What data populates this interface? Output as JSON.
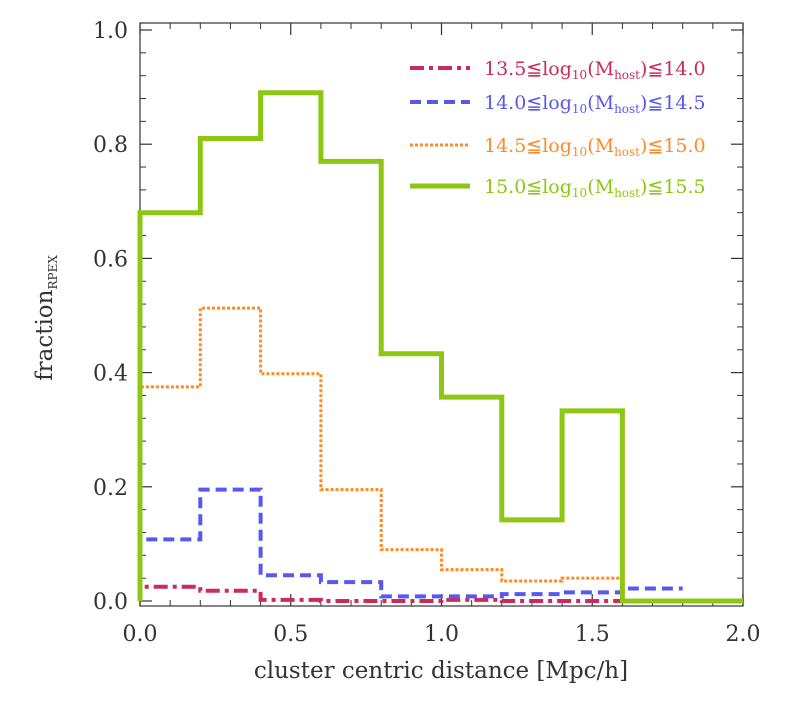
{
  "chart_data": {
    "type": "line",
    "step": true,
    "xlabel": "cluster centric distance [Mpc/h]",
    "ylabel": "fraction",
    "ylabel_sub": "RPEX",
    "xlim": [
      0.0,
      2.0
    ],
    "ylim": [
      0.0,
      1.0
    ],
    "xticks": [
      "0.0",
      "0.5",
      "1.0",
      "1.5",
      "2.0"
    ],
    "yticks": [
      "0.0",
      "0.2",
      "0.4",
      "0.6",
      "0.8",
      "1.0"
    ],
    "grid": false,
    "legend_position": "top-right",
    "bin_edges": [
      0.0,
      0.2,
      0.4,
      0.6,
      0.8,
      1.0,
      1.2,
      1.4,
      1.6,
      1.8,
      2.0
    ],
    "series": [
      {
        "name": "13.5≦log10(Mhost)≦14.0",
        "legend": {
          "pre": "13.5≦log",
          "sub1": "10",
          "mid": "(M",
          "sub2": "host",
          "post": ")≦14.0"
        },
        "color": "#cc2a5a",
        "dash": "14 5 4 5",
        "width": 4,
        "values": [
          0.025,
          0.018,
          0.002,
          0.0,
          0.0,
          0.002,
          0.0,
          0.0
        ]
      },
      {
        "name": "14.0≦log10(Mhost)≦14.5",
        "legend": {
          "pre": "14.0≦log",
          "sub1": "10",
          "mid": "(M",
          "sub2": "host",
          "post": ")≦14.5"
        },
        "color": "#5858ee",
        "dash": "11 6",
        "width": 4,
        "values": [
          0.108,
          0.195,
          0.045,
          0.033,
          0.008,
          0.008,
          0.012,
          0.015,
          0.022
        ]
      },
      {
        "name": "14.5≦log10(Mhost)≦15.0",
        "legend": {
          "pre": "14.5≦log",
          "sub1": "10",
          "mid": "(M",
          "sub2": "host",
          "post": ")≦15.0"
        },
        "color": "#ff8a22",
        "dash": "3 2",
        "width": 3,
        "values": [
          0.375,
          0.513,
          0.398,
          0.195,
          0.09,
          0.055,
          0.035,
          0.04
        ]
      },
      {
        "name": "15.0≦log10(Mhost)≦15.5",
        "legend": {
          "pre": "15.0≦log",
          "sub1": "10",
          "mid": "(M",
          "sub2": "host",
          "post": ")≦15.5"
        },
        "color": "#8ec614",
        "dash": "",
        "width": 5,
        "values": [
          0.68,
          0.81,
          0.89,
          0.77,
          0.433,
          0.357,
          0.142,
          0.333,
          0.0,
          0.0
        ]
      }
    ]
  }
}
